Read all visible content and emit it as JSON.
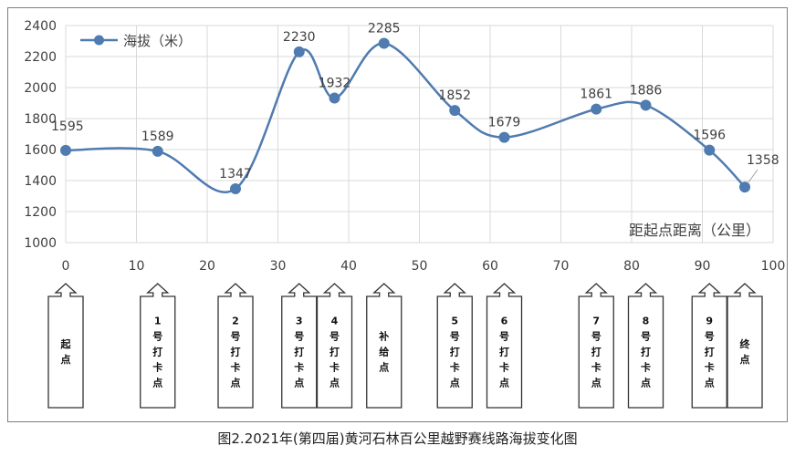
{
  "chart_data": {
    "type": "line",
    "legend": "海拔（米）",
    "xlabel": "距起点距离（公里）",
    "ylabel": "",
    "x": [
      0,
      13,
      24,
      33,
      38,
      45,
      55,
      62,
      75,
      82,
      91,
      96
    ],
    "values": [
      1595,
      1589,
      1347,
      2230,
      1932,
      2285,
      1852,
      1679,
      1861,
      1886,
      1596,
      1358
    ],
    "value_labels": [
      "1595",
      "1589",
      "1347",
      "2230",
      "1932",
      "2285",
      "1852",
      "1679",
      "1861",
      "1886",
      "1596",
      "1358"
    ],
    "xlim": [
      0,
      100
    ],
    "ylim": [
      1000,
      2400
    ],
    "xticks": [
      0,
      10,
      20,
      30,
      40,
      50,
      60,
      70,
      80,
      90,
      100
    ],
    "yticks": [
      1000,
      1200,
      1400,
      1600,
      1800,
      2000,
      2200,
      2400
    ],
    "xtick_labels": [
      "0",
      "10",
      "20",
      "30",
      "40",
      "50",
      "60",
      "70",
      "80",
      "90",
      "100"
    ],
    "ytick_labels": [
      "1000",
      "1200",
      "1400",
      "1600",
      "1800",
      "2000",
      "2200",
      "2400"
    ],
    "grid": true,
    "legend_position": "top-left",
    "colors": {
      "line": "#4f7bb0",
      "grid": "#d9d9d9",
      "text": "#404040"
    }
  },
  "checkpoints": [
    {
      "x": 0,
      "label": "起点"
    },
    {
      "x": 13,
      "label": "1号打卡点"
    },
    {
      "x": 24,
      "label": "2号打卡点"
    },
    {
      "x": 33,
      "label": "3号打卡点"
    },
    {
      "x": 38,
      "label": "4号打卡点"
    },
    {
      "x": 45,
      "label": "补给点"
    },
    {
      "x": 55,
      "label": "5号打卡点"
    },
    {
      "x": 62,
      "label": "6号打卡点"
    },
    {
      "x": 75,
      "label": "7号打卡点"
    },
    {
      "x": 82,
      "label": "8号打卡点"
    },
    {
      "x": 91,
      "label": "9号打卡点"
    },
    {
      "x": 96,
      "label": "终点"
    }
  ],
  "caption": "图2.2021年(第四届)黄河石林百公里越野赛线路海拔变化图"
}
